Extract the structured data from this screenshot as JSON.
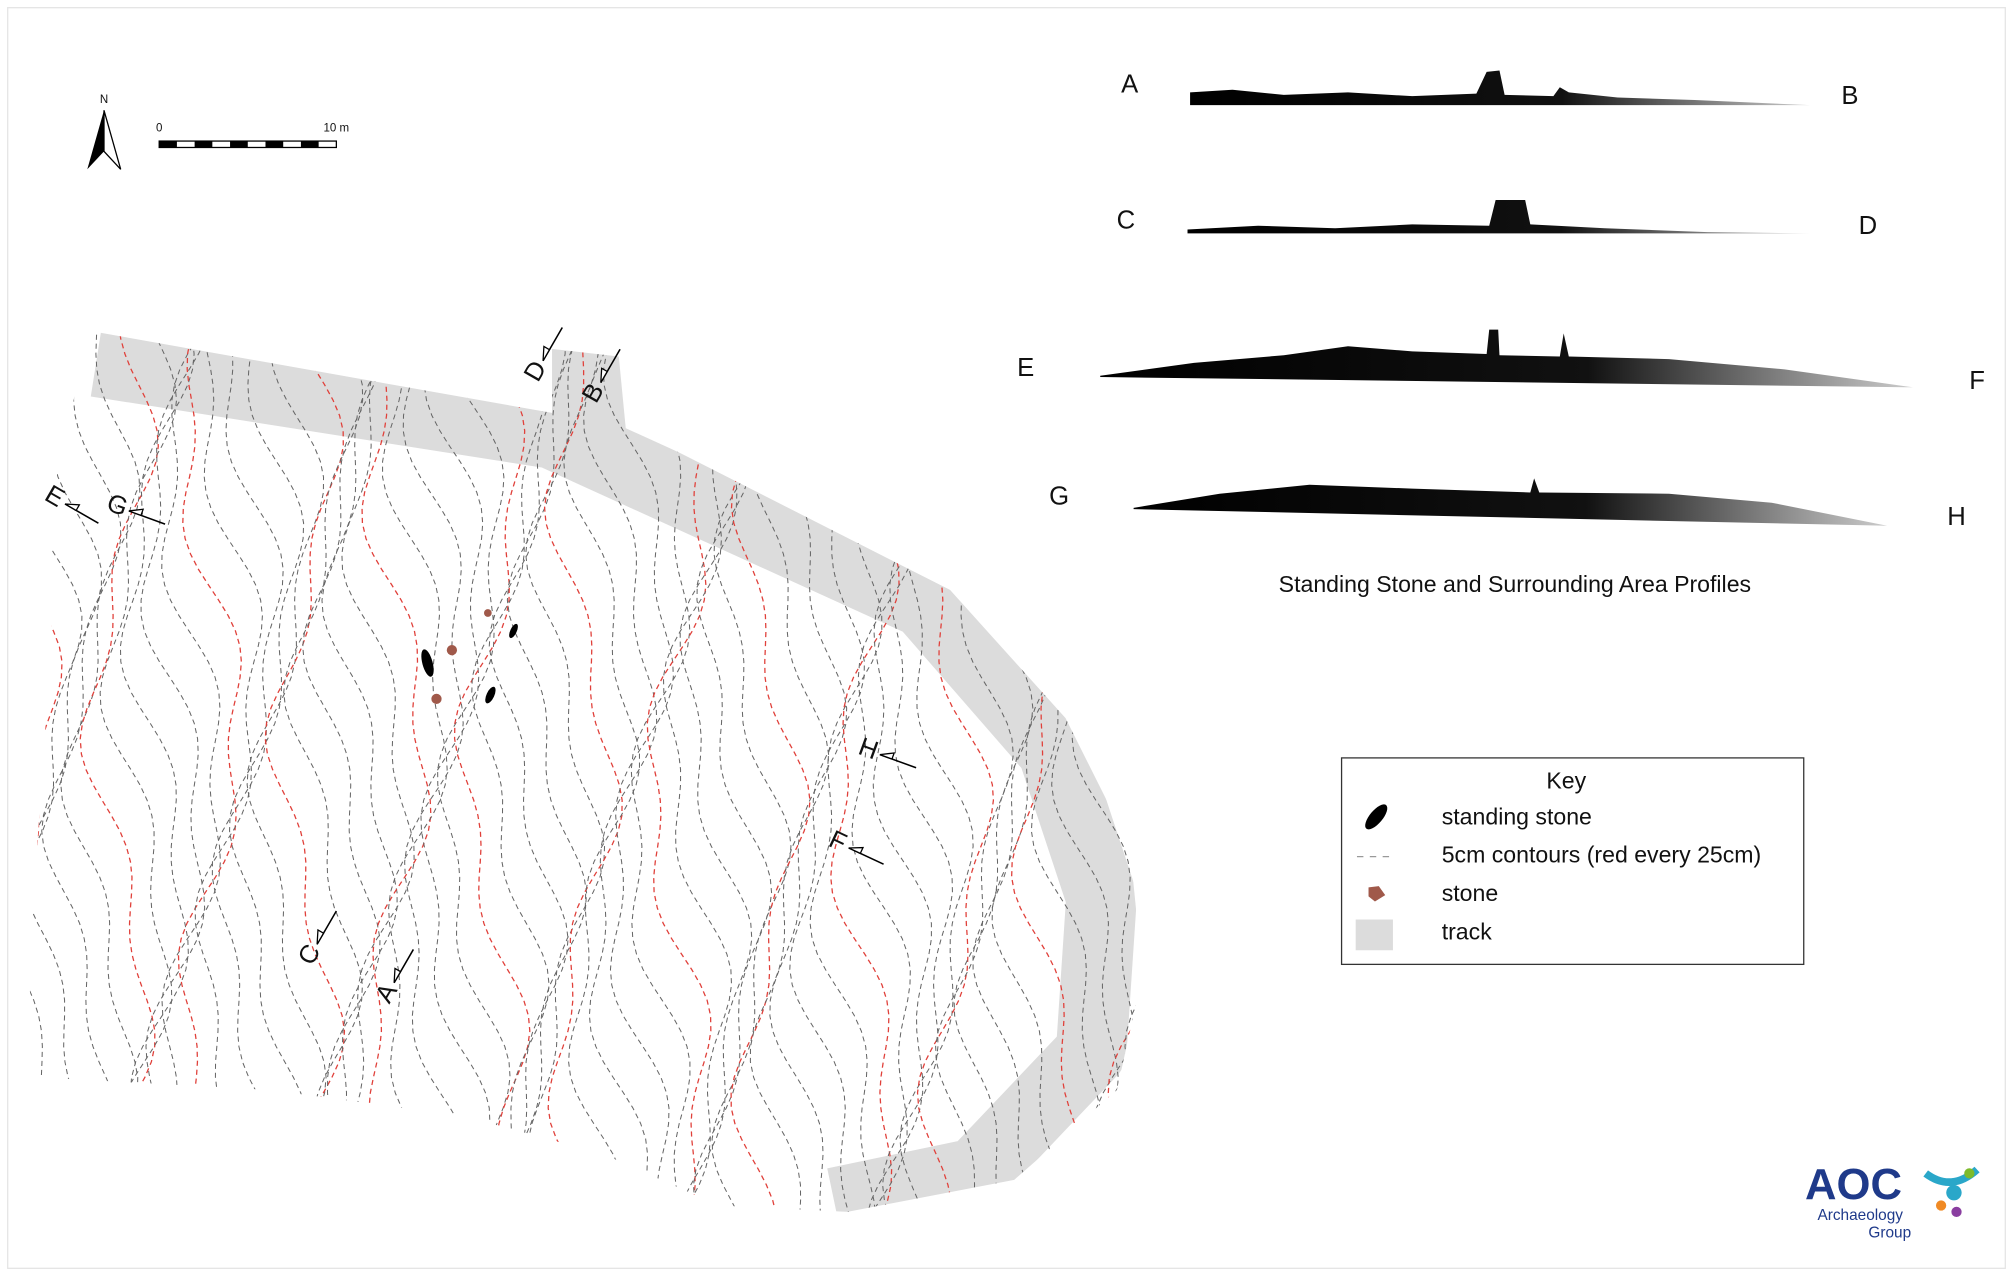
{
  "north_arrow": {
    "label": "N"
  },
  "scale_bar": {
    "labels": [
      "0",
      "10 m"
    ]
  },
  "profiles": {
    "title": "Standing Stone and Surrounding Area Profiles",
    "items": [
      {
        "start": "A",
        "end": "B"
      },
      {
        "start": "C",
        "end": "D"
      },
      {
        "start": "E",
        "end": "F"
      },
      {
        "start": "G",
        "end": "H"
      }
    ]
  },
  "map": {
    "section_labels": [
      "D",
      "B",
      "E",
      "G",
      "H",
      "F",
      "C",
      "A"
    ]
  },
  "key": {
    "title": "Key",
    "items": [
      "standing stone",
      "5cm contours (red every 25cm)",
      "stone",
      "track"
    ]
  },
  "logo": {
    "name": "AOC",
    "lines": [
      "Archaeology",
      "Group"
    ]
  }
}
